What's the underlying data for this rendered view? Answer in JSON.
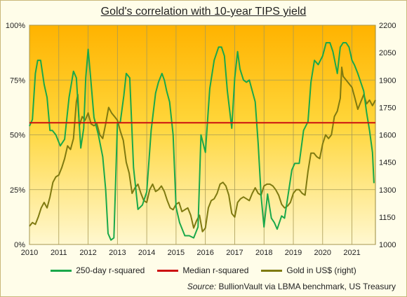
{
  "chart_data": {
    "type": "line",
    "title": "Gold's correlation with 10-year TIPS  yield",
    "source_label": "Source:",
    "source_text": " BullionVault via LBMA benchmark, US Treasury",
    "x_ticks": [
      "2010",
      "2011",
      "2012",
      "2013",
      "2014",
      "2015",
      "2016",
      "2017",
      "2018",
      "2019",
      "2020",
      "2021"
    ],
    "x_range": [
      2010.0,
      2021.8
    ],
    "y_left": {
      "ticks": [
        "0%",
        "25%",
        "50%",
        "75%",
        "100%"
      ],
      "range": [
        0,
        100
      ]
    },
    "y_right": {
      "ticks": [
        "1000",
        "1150",
        "1300",
        "1450",
        "1600",
        "1750",
        "1900",
        "2050",
        "2200"
      ],
      "range": [
        1000,
        2200
      ]
    },
    "grid": true,
    "legend_position": "bottom",
    "colors": {
      "rsq": "#1aa84a",
      "median": "#cc1111",
      "gold": "#7f7a10",
      "bg_top": "#ffb300",
      "bg_bottom": "#fff8d0"
    },
    "series": [
      {
        "name": "250-day r-squared",
        "axis": "left",
        "x": [
          2010.0,
          2010.1,
          2010.2,
          2010.28,
          2010.38,
          2010.5,
          2010.6,
          2010.7,
          2010.78,
          2010.9,
          2011.05,
          2011.2,
          2011.35,
          2011.5,
          2011.6,
          2011.75,
          2011.85,
          2011.92,
          2012.0,
          2012.08,
          2012.2,
          2012.35,
          2012.5,
          2012.6,
          2012.68,
          2012.78,
          2012.88,
          2013.0,
          2013.1,
          2013.22,
          2013.3,
          2013.42,
          2013.55,
          2013.7,
          2013.85,
          2014.0,
          2014.15,
          2014.3,
          2014.4,
          2014.52,
          2014.6,
          2014.68,
          2014.78,
          2014.9,
          2015.0,
          2015.12,
          2015.3,
          2015.45,
          2015.6,
          2015.75,
          2015.85,
          2016.0,
          2016.15,
          2016.3,
          2016.45,
          2016.55,
          2016.65,
          2016.75,
          2016.9,
          2017.0,
          2017.1,
          2017.18,
          2017.3,
          2017.4,
          2017.5,
          2017.6,
          2017.7,
          2017.8,
          2017.9,
          2018.0,
          2018.12,
          2018.25,
          2018.35,
          2018.45,
          2018.6,
          2018.7,
          2018.85,
          2018.95,
          2019.05,
          2019.2,
          2019.35,
          2019.5,
          2019.6,
          2019.72,
          2019.85,
          2020.0,
          2020.12,
          2020.25,
          2020.35,
          2020.5,
          2020.6,
          2020.7,
          2020.8,
          2020.9,
          2021.0,
          2021.08,
          2021.2,
          2021.3,
          2021.4,
          2021.5,
          2021.6,
          2021.7,
          2021.75
        ],
        "values": [
          54,
          57,
          78,
          84,
          84,
          73,
          67,
          52,
          52,
          50,
          45,
          48,
          67,
          79,
          76,
          44,
          53,
          76,
          89,
          77,
          58,
          50,
          40,
          25,
          5,
          2,
          3,
          55,
          56,
          68,
          78,
          76,
          35,
          16,
          18,
          24,
          52,
          69,
          74,
          78,
          75,
          70,
          65,
          50,
          17,
          10,
          4,
          4,
          3,
          8,
          50,
          42,
          71,
          84,
          90,
          90,
          86,
          70,
          53,
          76,
          88,
          80,
          75,
          74,
          75,
          70,
          65,
          46,
          22,
          8,
          23,
          12,
          10,
          7,
          13,
          12,
          25,
          34,
          37,
          37,
          52,
          56,
          74,
          84,
          82,
          86,
          92,
          92,
          88,
          78,
          90,
          92,
          92,
          90,
          84,
          82,
          78,
          74,
          70,
          60,
          52,
          42,
          28
        ]
      },
      {
        "name": "Median r-squared",
        "axis": "left",
        "x": [
          2010.0,
          2021.8
        ],
        "values": [
          55.5,
          55.5
        ]
      },
      {
        "name": "Gold in US$ (right)",
        "axis": "right",
        "x": [
          2010.0,
          2010.1,
          2010.2,
          2010.3,
          2010.4,
          2010.5,
          2010.6,
          2010.7,
          2010.8,
          2010.9,
          2011.0,
          2011.1,
          2011.2,
          2011.3,
          2011.4,
          2011.5,
          2011.6,
          2011.65,
          2011.7,
          2011.8,
          2011.9,
          2012.0,
          2012.1,
          2012.2,
          2012.3,
          2012.4,
          2012.5,
          2012.6,
          2012.7,
          2012.8,
          2012.9,
          2013.0,
          2013.1,
          2013.2,
          2013.3,
          2013.4,
          2013.5,
          2013.6,
          2013.7,
          2013.8,
          2013.9,
          2014.0,
          2014.1,
          2014.2,
          2014.3,
          2014.4,
          2014.5,
          2014.6,
          2014.7,
          2014.8,
          2014.9,
          2015.0,
          2015.1,
          2015.2,
          2015.3,
          2015.4,
          2015.5,
          2015.6,
          2015.7,
          2015.8,
          2015.9,
          2016.0,
          2016.1,
          2016.2,
          2016.3,
          2016.4,
          2016.5,
          2016.6,
          2016.7,
          2016.8,
          2016.9,
          2017.0,
          2017.1,
          2017.2,
          2017.3,
          2017.4,
          2017.5,
          2017.6,
          2017.7,
          2017.8,
          2017.9,
          2018.0,
          2018.1,
          2018.2,
          2018.3,
          2018.4,
          2018.5,
          2018.6,
          2018.7,
          2018.8,
          2018.9,
          2019.0,
          2019.1,
          2019.2,
          2019.3,
          2019.4,
          2019.5,
          2019.6,
          2019.7,
          2019.8,
          2019.9,
          2020.0,
          2020.1,
          2020.2,
          2020.3,
          2020.4,
          2020.5,
          2020.6,
          2020.65,
          2020.7,
          2020.8,
          2020.9,
          2021.0,
          2021.1,
          2021.2,
          2021.3,
          2021.4,
          2021.5,
          2021.6,
          2021.7,
          2021.8
        ],
        "values": [
          1100,
          1120,
          1110,
          1150,
          1200,
          1230,
          1200,
          1260,
          1340,
          1370,
          1380,
          1420,
          1470,
          1540,
          1520,
          1580,
          1780,
          1820,
          1650,
          1700,
          1680,
          1720,
          1660,
          1650,
          1660,
          1600,
          1580,
          1660,
          1750,
          1720,
          1700,
          1680,
          1620,
          1570,
          1450,
          1390,
          1280,
          1310,
          1330,
          1280,
          1240,
          1230,
          1300,
          1330,
          1290,
          1300,
          1320,
          1290,
          1240,
          1200,
          1190,
          1220,
          1230,
          1180,
          1190,
          1200,
          1160,
          1090,
          1130,
          1160,
          1070,
          1090,
          1200,
          1240,
          1250,
          1280,
          1330,
          1340,
          1320,
          1270,
          1170,
          1150,
          1230,
          1250,
          1260,
          1250,
          1240,
          1280,
          1310,
          1280,
          1270,
          1320,
          1330,
          1330,
          1320,
          1300,
          1270,
          1220,
          1200,
          1210,
          1230,
          1280,
          1300,
          1300,
          1280,
          1270,
          1400,
          1500,
          1500,
          1480,
          1470,
          1550,
          1600,
          1580,
          1600,
          1700,
          1730,
          1800,
          1970,
          1920,
          1900,
          1880,
          1860,
          1800,
          1740,
          1780,
          1820,
          1770,
          1790,
          1760,
          1790
        ]
      }
    ]
  }
}
